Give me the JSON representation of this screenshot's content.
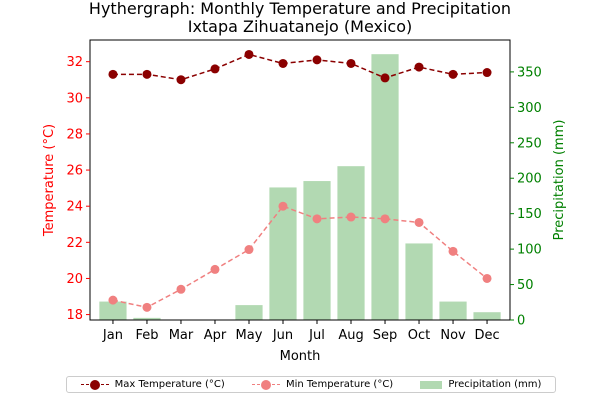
{
  "chart_data": {
    "type": "bar+line",
    "title": "Hythergraph: Monthly Temperature and Precipitation",
    "subtitle": "Ixtapa Zihuatanejo (Mexico)",
    "xlabel": "Month",
    "ylabel_left": "Temperature (°C)",
    "ylabel_right": "Precipitation (mm)",
    "categories": [
      "Jan",
      "Feb",
      "Mar",
      "Apr",
      "May",
      "Jun",
      "Jul",
      "Aug",
      "Sep",
      "Oct",
      "Nov",
      "Dec"
    ],
    "ylim_left": [
      17.7,
      33.2
    ],
    "ylim_right": [
      0,
      395
    ],
    "yticks_left": [
      18,
      20,
      22,
      24,
      26,
      28,
      30,
      32
    ],
    "yticks_right": [
      0,
      50,
      100,
      150,
      200,
      250,
      300,
      350
    ],
    "grid": false,
    "legend_position": "bottom",
    "series": [
      {
        "name": "Max Temperature (°C)",
        "type": "line",
        "axis": "left",
        "color": "#8b0000",
        "values": [
          31.3,
          31.3,
          31.0,
          31.6,
          32.4,
          31.9,
          32.1,
          31.9,
          31.1,
          31.7,
          31.3,
          31.4
        ]
      },
      {
        "name": "Min Temperature (°C)",
        "type": "line",
        "axis": "left",
        "color": "#f08080",
        "values": [
          18.8,
          18.4,
          19.4,
          20.5,
          21.6,
          24.0,
          23.3,
          23.4,
          23.3,
          23.1,
          21.5,
          20.0
        ]
      },
      {
        "name": "Precipitation (mm)",
        "type": "bar",
        "axis": "right",
        "color": "#b2d9b2",
        "values": [
          26,
          3,
          0,
          0,
          21,
          187,
          196,
          217,
          375,
          108,
          26,
          11
        ]
      }
    ],
    "colors": {
      "left_axis": "#ff0000",
      "right_axis": "#008000"
    }
  }
}
